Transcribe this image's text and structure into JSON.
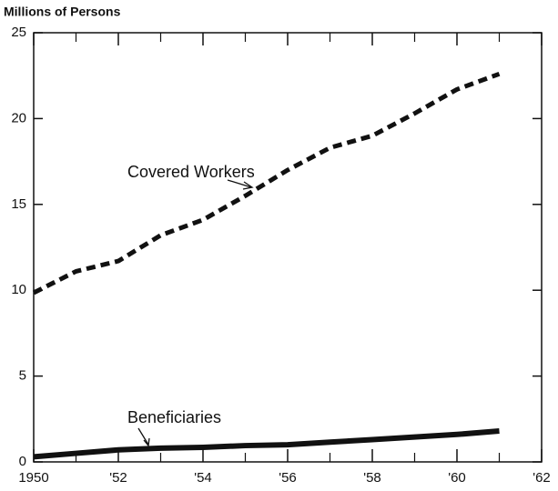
{
  "chart_data": {
    "type": "line",
    "y_axis_label": "Millions of Persons",
    "x": [
      1950,
      1951,
      1952,
      1953,
      1954,
      1955,
      1956,
      1957,
      1958,
      1959,
      1960,
      1961
    ],
    "series": [
      {
        "name": "Covered Workers",
        "color": "#111111",
        "style": "dashed",
        "values": [
          9.85,
          11.1,
          11.7,
          13.2,
          14.1,
          15.5,
          17.0,
          18.3,
          19.0,
          20.3,
          21.7,
          22.6
        ]
      },
      {
        "name": "Beneficiaries",
        "color": "#111111",
        "style": "solid",
        "values": [
          0.3,
          0.5,
          0.7,
          0.8,
          0.85,
          0.95,
          1.0,
          1.15,
          1.3,
          1.45,
          1.6,
          1.8
        ]
      }
    ],
    "xlim": [
      1950,
      1962
    ],
    "xticks": [
      1950,
      {
        "value": 1952,
        "label": "'52"
      },
      {
        "value": 1954,
        "label": "'54"
      },
      {
        "value": 1956,
        "label": "'56"
      },
      {
        "value": 1958,
        "label": "'58"
      },
      {
        "value": 1960,
        "label": "'60"
      },
      {
        "value": 1962,
        "label": "'62"
      }
    ],
    "ylim": [
      0,
      25
    ],
    "yticks": [
      0,
      5,
      10,
      15,
      20,
      25
    ],
    "grid": false
  }
}
